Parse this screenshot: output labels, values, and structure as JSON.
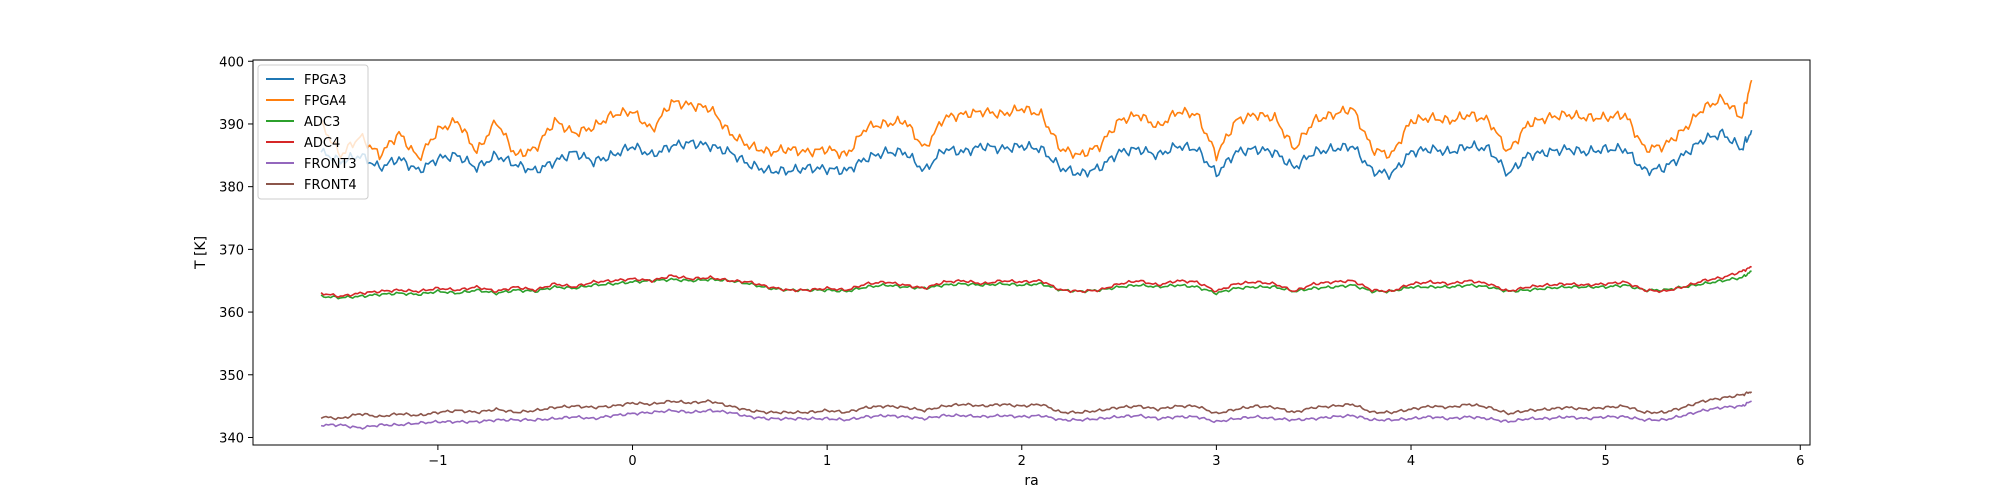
{
  "chart_data": {
    "type": "line",
    "title": "",
    "xlabel": "ra",
    "ylabel": "T [K]",
    "xlim": [
      -1.95,
      6.05
    ],
    "ylim": [
      338.8,
      400.2
    ],
    "xticks": [
      -1,
      0,
      1,
      2,
      3,
      4,
      5,
      6
    ],
    "xtick_labels": [
      "−1",
      "0",
      "1",
      "2",
      "3",
      "4",
      "5",
      "6"
    ],
    "yticks": [
      340,
      350,
      360,
      370,
      380,
      390,
      400
    ],
    "ytick_labels": [
      "340",
      "350",
      "360",
      "370",
      "380",
      "390",
      "400"
    ],
    "grid": false,
    "legend_position": "upper-left",
    "x": [
      -1.6,
      -1.5,
      -1.4,
      -1.3,
      -1.2,
      -1.1,
      -1.0,
      -0.9,
      -0.8,
      -0.7,
      -0.6,
      -0.5,
      -0.4,
      -0.3,
      -0.2,
      -0.1,
      0.0,
      0.1,
      0.2,
      0.3,
      0.4,
      0.5,
      0.6,
      0.7,
      0.8,
      0.9,
      1.0,
      1.1,
      1.2,
      1.3,
      1.4,
      1.5,
      1.6,
      1.7,
      1.8,
      1.9,
      2.0,
      2.1,
      2.2,
      2.3,
      2.4,
      2.5,
      2.6,
      2.7,
      2.8,
      2.9,
      3.0,
      3.1,
      3.2,
      3.3,
      3.4,
      3.5,
      3.6,
      3.7,
      3.8,
      3.9,
      4.0,
      4.1,
      4.2,
      4.3,
      4.4,
      4.5,
      4.6,
      4.7,
      4.8,
      4.9,
      5.0,
      5.1,
      5.2,
      5.3,
      5.4,
      5.5,
      5.6,
      5.7,
      5.75
    ],
    "series": [
      {
        "name": "FPGA3",
        "color": "#1f77b4",
        "values": [
          385.5,
          384.0,
          385.0,
          383.0,
          384.5,
          382.5,
          384.5,
          385.0,
          383.0,
          385.0,
          383.5,
          382.5,
          384.0,
          385.5,
          384.0,
          385.0,
          386.5,
          385.0,
          386.5,
          387.0,
          386.5,
          385.5,
          383.5,
          382.5,
          382.5,
          383.0,
          382.8,
          382.5,
          384.5,
          385.5,
          385.5,
          382.5,
          386.0,
          385.5,
          386.5,
          386.0,
          386.5,
          386.0,
          383.0,
          382.0,
          383.0,
          385.5,
          386.0,
          385.0,
          386.5,
          386.0,
          382.0,
          385.5,
          386.0,
          385.5,
          383.0,
          385.5,
          386.0,
          386.5,
          382.5,
          382.0,
          385.5,
          386.0,
          385.5,
          386.5,
          386.0,
          382.0,
          385.0,
          385.5,
          386.0,
          385.5,
          386.0,
          386.0,
          382.5,
          383.0,
          385.0,
          387.5,
          388.5,
          386.0,
          389.0
        ]
      },
      {
        "name": "FPGA4",
        "color": "#ff7f0e",
        "values": [
          390.0,
          385.0,
          388.0,
          385.0,
          388.5,
          384.5,
          389.0,
          390.5,
          385.5,
          390.5,
          385.0,
          386.0,
          390.5,
          388.5,
          389.5,
          391.5,
          392.0,
          389.0,
          393.5,
          393.0,
          392.5,
          388.5,
          386.5,
          385.5,
          386.0,
          385.5,
          386.0,
          385.0,
          389.5,
          390.0,
          390.5,
          386.0,
          391.0,
          391.5,
          392.0,
          391.5,
          392.5,
          391.5,
          386.0,
          385.0,
          386.5,
          390.5,
          391.5,
          389.5,
          392.0,
          391.5,
          385.0,
          390.5,
          391.5,
          391.0,
          386.0,
          390.5,
          391.5,
          392.5,
          386.0,
          385.0,
          390.5,
          391.0,
          390.5,
          391.5,
          390.5,
          385.5,
          390.0,
          391.0,
          391.5,
          391.0,
          391.0,
          391.5,
          386.0,
          386.5,
          389.0,
          392.5,
          394.0,
          391.0,
          397.0
        ]
      },
      {
        "name": "ADC3",
        "color": "#2ca02c",
        "values": [
          362.5,
          362.3,
          362.5,
          362.8,
          363.0,
          362.8,
          363.3,
          363.0,
          363.5,
          363.0,
          363.5,
          363.3,
          364.0,
          363.8,
          364.3,
          364.5,
          364.8,
          365.0,
          365.2,
          365.0,
          365.2,
          365.0,
          364.5,
          363.8,
          363.5,
          363.5,
          363.5,
          363.3,
          364.0,
          364.3,
          364.0,
          363.8,
          364.3,
          364.5,
          364.3,
          364.5,
          364.3,
          364.5,
          363.5,
          363.3,
          363.5,
          364.0,
          364.3,
          364.0,
          364.3,
          364.0,
          363.0,
          363.8,
          364.0,
          364.0,
          363.3,
          363.8,
          364.0,
          364.3,
          363.3,
          363.3,
          364.0,
          364.0,
          364.0,
          364.3,
          364.0,
          363.3,
          363.5,
          363.8,
          364.0,
          364.0,
          364.0,
          364.3,
          363.5,
          363.5,
          364.0,
          364.5,
          365.0,
          365.5,
          366.5
        ]
      },
      {
        "name": "ADC4",
        "color": "#d62728",
        "values": [
          363.0,
          362.5,
          363.0,
          363.3,
          363.5,
          363.3,
          363.8,
          363.5,
          364.0,
          363.3,
          364.0,
          363.5,
          364.5,
          364.0,
          364.8,
          365.0,
          365.3,
          365.0,
          365.8,
          365.3,
          365.5,
          365.0,
          364.8,
          364.0,
          363.5,
          363.5,
          363.8,
          363.5,
          364.5,
          364.8,
          364.3,
          363.8,
          364.8,
          365.0,
          364.5,
          365.0,
          364.8,
          365.0,
          363.5,
          363.3,
          363.5,
          364.5,
          365.0,
          364.3,
          365.0,
          364.8,
          363.3,
          364.5,
          364.8,
          364.5,
          363.3,
          364.5,
          364.8,
          365.0,
          363.5,
          363.3,
          364.5,
          364.8,
          364.5,
          365.0,
          364.5,
          363.3,
          364.0,
          364.3,
          364.5,
          364.3,
          364.5,
          364.8,
          363.5,
          363.3,
          364.0,
          365.0,
          365.5,
          366.5,
          367.2
        ]
      },
      {
        "name": "FRONT3",
        "color": "#9467bd",
        "values": [
          342.0,
          342.0,
          341.5,
          342.0,
          342.0,
          342.3,
          342.5,
          342.5,
          342.5,
          342.8,
          342.8,
          342.8,
          343.0,
          343.3,
          343.0,
          343.5,
          343.8,
          344.0,
          344.3,
          344.0,
          344.3,
          344.0,
          343.3,
          343.0,
          343.0,
          343.0,
          343.0,
          342.8,
          343.3,
          343.5,
          343.3,
          343.0,
          343.5,
          343.5,
          343.3,
          343.5,
          343.3,
          343.5,
          342.8,
          342.8,
          343.0,
          343.3,
          343.5,
          343.0,
          343.3,
          343.3,
          342.5,
          343.0,
          343.3,
          343.0,
          342.8,
          343.0,
          343.3,
          343.5,
          342.8,
          342.8,
          343.0,
          343.3,
          343.0,
          343.3,
          343.0,
          342.5,
          343.0,
          343.0,
          343.3,
          343.0,
          343.3,
          343.3,
          342.8,
          342.8,
          343.5,
          344.3,
          344.8,
          345.0,
          345.8
        ]
      },
      {
        "name": "FRONT4",
        "color": "#8c564b",
        "values": [
          343.3,
          343.0,
          343.8,
          343.3,
          343.8,
          343.5,
          344.0,
          344.3,
          344.0,
          344.5,
          344.0,
          344.3,
          344.8,
          345.0,
          344.8,
          345.0,
          345.5,
          345.3,
          345.8,
          345.5,
          345.8,
          345.0,
          344.3,
          344.0,
          344.0,
          344.0,
          344.3,
          344.0,
          344.8,
          345.0,
          344.8,
          344.3,
          345.0,
          345.3,
          345.0,
          345.3,
          345.0,
          345.3,
          344.0,
          344.0,
          344.3,
          344.8,
          345.0,
          344.5,
          345.0,
          345.0,
          343.8,
          344.5,
          345.0,
          344.8,
          344.0,
          344.8,
          345.0,
          345.3,
          344.0,
          344.0,
          344.5,
          345.0,
          344.8,
          345.3,
          344.8,
          343.8,
          344.3,
          344.5,
          344.8,
          344.5,
          344.8,
          345.0,
          344.0,
          344.0,
          344.8,
          345.8,
          346.3,
          346.8,
          347.3
        ]
      }
    ]
  }
}
